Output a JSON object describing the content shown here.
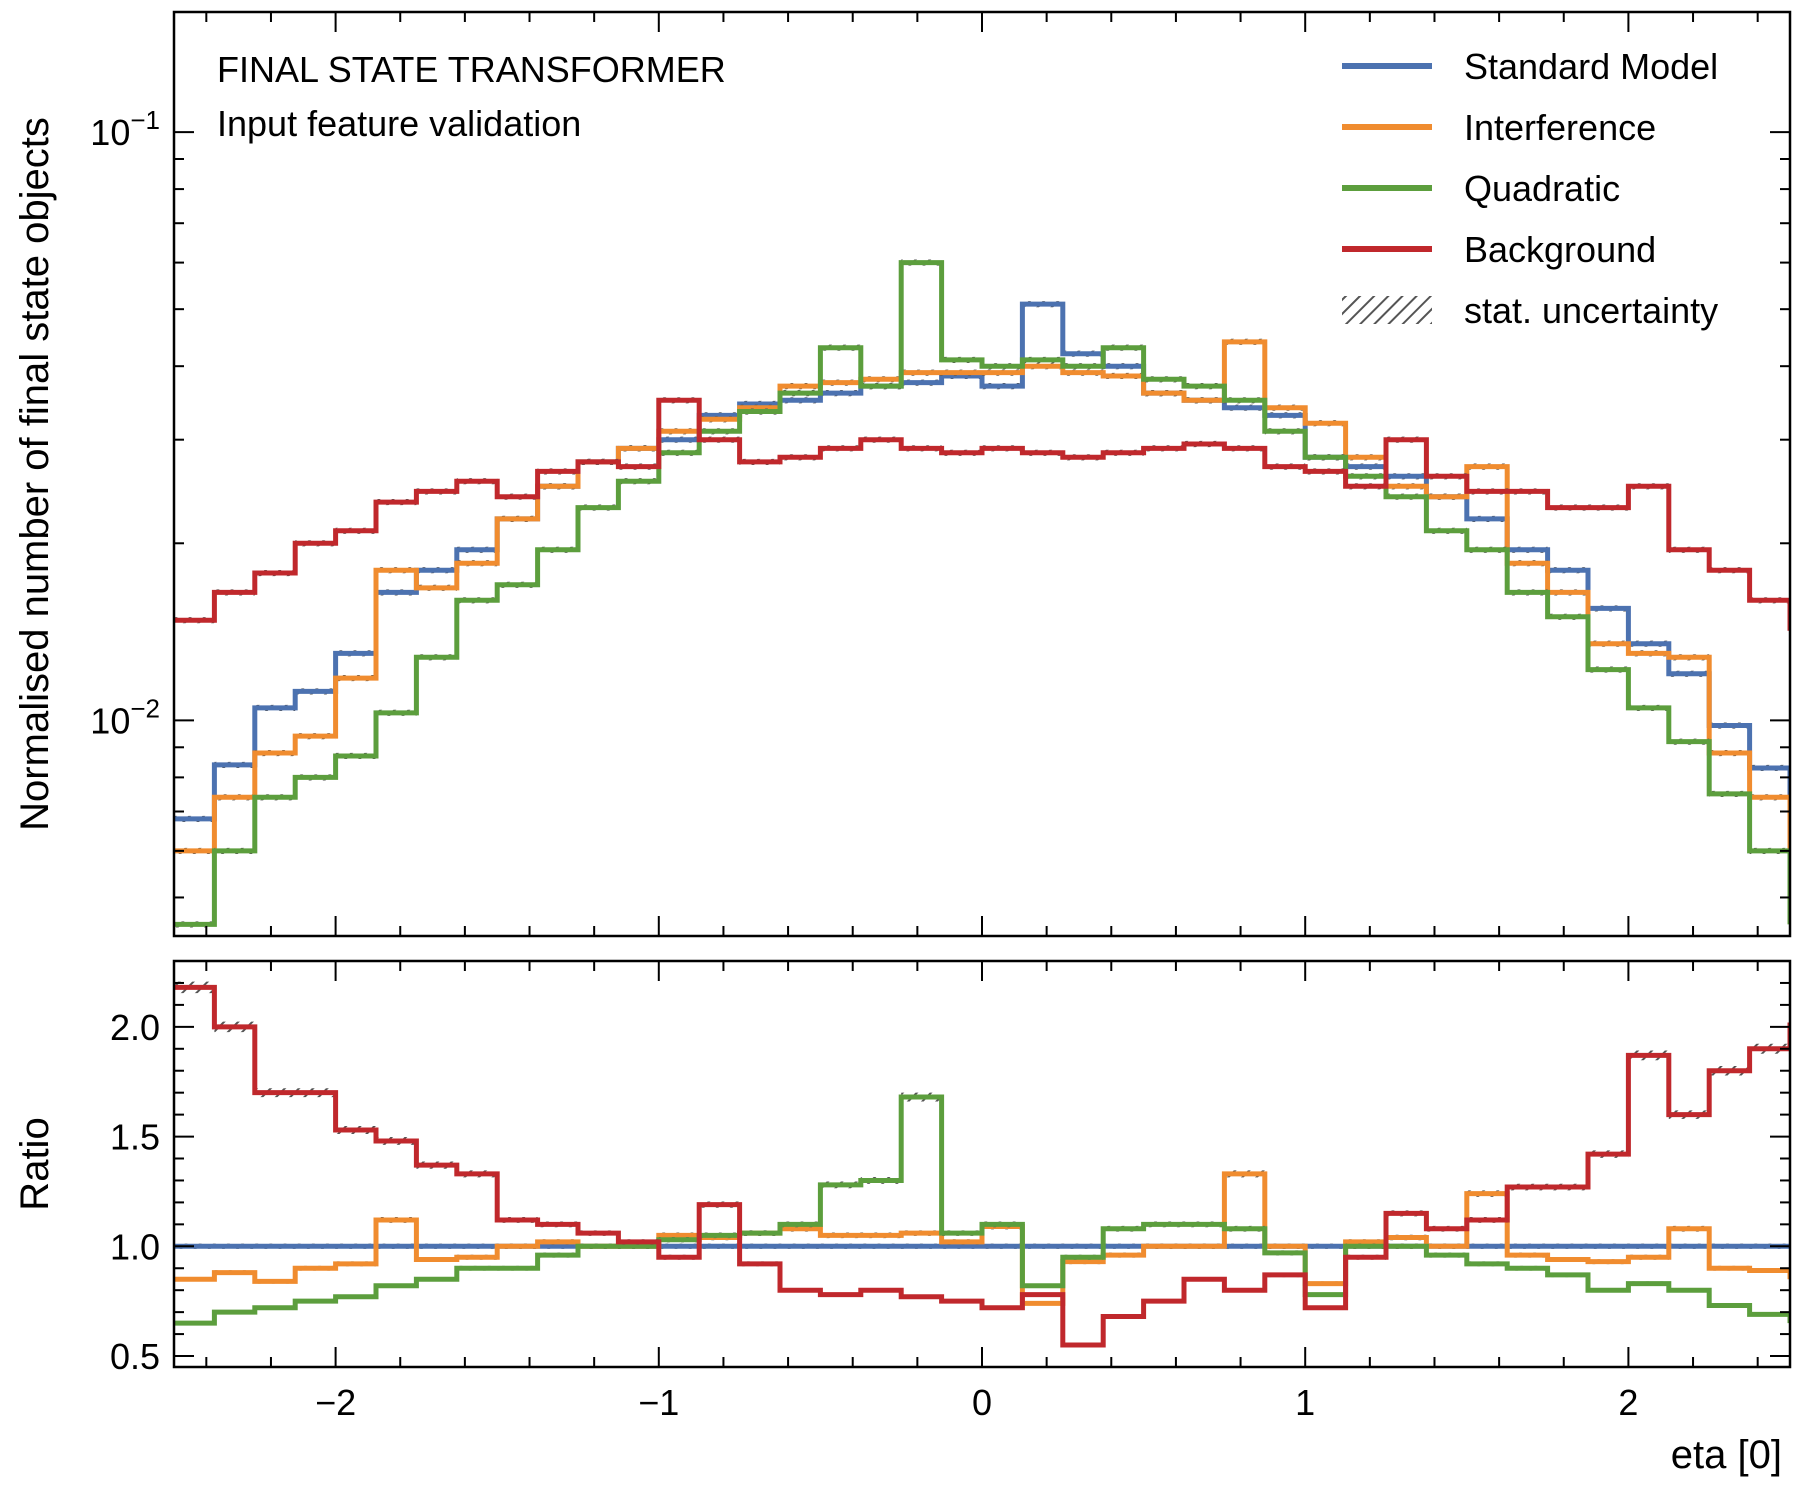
{
  "chart_data": {
    "type": "step-histogram-with-ratio",
    "annotations": [
      "FINAL STATE TRANSFORMER",
      "Input feature validation"
    ],
    "xlabel": "eta [0]",
    "xlim": [
      -2.5,
      2.5
    ],
    "xticks": [
      -2,
      -1,
      0,
      1,
      2
    ],
    "xtick_labels": [
      "−2",
      "−1",
      "0",
      "1",
      "2"
    ],
    "bin_edges": [
      -2.5,
      -2.375,
      -2.25,
      -2.125,
      -2.0,
      -1.875,
      -1.75,
      -1.625,
      -1.5,
      -1.375,
      -1.25,
      -1.125,
      -1.0,
      -0.875,
      -0.75,
      -0.625,
      -0.5,
      -0.375,
      -0.25,
      -0.125,
      0.0,
      0.125,
      0.25,
      0.375,
      0.5,
      0.625,
      0.75,
      0.875,
      1.0,
      1.125,
      1.25,
      1.375,
      1.5,
      1.625,
      1.75,
      1.875,
      2.0,
      2.125,
      2.25,
      2.375,
      2.5
    ],
    "main": {
      "ylabel": "Normalised number of final state objects",
      "yscale": "log",
      "ylim": [
        0.0043,
        0.16
      ],
      "yticks": [
        0.01,
        0.1
      ],
      "ytick_labels": [
        {
          "base": "10",
          "exp": "−2"
        },
        {
          "base": "10",
          "exp": "−1"
        }
      ],
      "series": [
        {
          "name": "Standard Model",
          "color": "#4c72b0",
          "values": [
            0.0068,
            0.0084,
            0.0105,
            0.0112,
            0.013,
            0.0165,
            0.018,
            0.0195,
            0.022,
            0.025,
            0.0275,
            0.029,
            0.03,
            0.033,
            0.0345,
            0.035,
            0.036,
            0.037,
            0.0375,
            0.0385,
            0.037,
            0.051,
            0.042,
            0.04,
            0.036,
            0.035,
            0.034,
            0.033,
            0.028,
            0.027,
            0.026,
            0.024,
            0.022,
            0.0195,
            0.018,
            0.0155,
            0.0135,
            0.012,
            0.0098,
            0.0083,
            0.0068
          ]
        },
        {
          "name": "Interference",
          "color": "#f08c2f",
          "values": [
            0.006,
            0.0074,
            0.0088,
            0.0094,
            0.0118,
            0.018,
            0.0168,
            0.0185,
            0.022,
            0.025,
            0.0275,
            0.029,
            0.031,
            0.0325,
            0.034,
            0.037,
            0.0375,
            0.038,
            0.039,
            0.039,
            0.039,
            0.04,
            0.039,
            0.0385,
            0.036,
            0.035,
            0.044,
            0.034,
            0.032,
            0.028,
            0.025,
            0.024,
            0.027,
            0.0185,
            0.0165,
            0.0135,
            0.013,
            0.0128,
            0.0088,
            0.0074,
            0.006
          ]
        },
        {
          "name": "Quadratic",
          "color": "#5c9e3d",
          "values": [
            0.0045,
            0.006,
            0.0074,
            0.008,
            0.0087,
            0.0103,
            0.0128,
            0.016,
            0.017,
            0.0195,
            0.023,
            0.0255,
            0.0285,
            0.031,
            0.0335,
            0.036,
            0.043,
            0.037,
            0.06,
            0.041,
            0.04,
            0.041,
            0.04,
            0.043,
            0.038,
            0.037,
            0.035,
            0.031,
            0.028,
            0.026,
            0.024,
            0.021,
            0.0195,
            0.0165,
            0.015,
            0.0122,
            0.0105,
            0.0092,
            0.0075,
            0.006,
            0.0045
          ]
        },
        {
          "name": "Background",
          "color": "#c0282c",
          "values": [
            0.0148,
            0.0165,
            0.0178,
            0.02,
            0.021,
            0.0235,
            0.0245,
            0.0255,
            0.024,
            0.0265,
            0.0275,
            0.027,
            0.035,
            0.03,
            0.0275,
            0.028,
            0.029,
            0.03,
            0.029,
            0.0285,
            0.029,
            0.0285,
            0.028,
            0.0285,
            0.029,
            0.0295,
            0.029,
            0.027,
            0.0265,
            0.025,
            0.03,
            0.026,
            0.0245,
            0.0245,
            0.023,
            0.023,
            0.025,
            0.0195,
            0.018,
            0.016,
            0.0142
          ]
        }
      ]
    },
    "ratio": {
      "ylabel": "Ratio",
      "ylim": [
        0.45,
        2.3
      ],
      "yticks": [
        0.5,
        1.0,
        1.5,
        2.0
      ],
      "ytick_labels": [
        "0.5",
        "1.0",
        "1.5",
        "2.0"
      ],
      "series": [
        {
          "name": "Standard Model",
          "color": "#4c72b0",
          "values": [
            1.0,
            1.0,
            1.0,
            1.0,
            1.0,
            1.0,
            1.0,
            1.0,
            1.0,
            1.0,
            1.0,
            1.0,
            1.0,
            1.0,
            1.0,
            1.0,
            1.0,
            1.0,
            1.0,
            1.0,
            1.0,
            1.0,
            1.0,
            1.0,
            1.0,
            1.0,
            1.0,
            1.0,
            1.0,
            1.0,
            1.0,
            1.0,
            1.0,
            1.0,
            1.0,
            1.0,
            1.0,
            1.0,
            1.0,
            1.0,
            1.0
          ]
        },
        {
          "name": "Interference",
          "color": "#f08c2f",
          "values": [
            0.85,
            0.88,
            0.84,
            0.9,
            0.92,
            1.12,
            0.94,
            0.95,
            1.0,
            1.02,
            1.0,
            1.0,
            1.05,
            1.04,
            1.06,
            1.08,
            1.05,
            1.05,
            1.06,
            1.02,
            1.09,
            0.74,
            0.93,
            0.96,
            1.0,
            1.0,
            1.33,
            1.0,
            0.83,
            1.02,
            1.04,
            1.0,
            1.24,
            0.96,
            0.94,
            0.93,
            0.95,
            1.08,
            0.9,
            0.89,
            0.85
          ]
        },
        {
          "name": "Quadratic",
          "color": "#5c9e3d",
          "values": [
            0.65,
            0.7,
            0.72,
            0.75,
            0.77,
            0.82,
            0.85,
            0.9,
            0.9,
            0.96,
            1.0,
            1.0,
            1.03,
            1.05,
            1.06,
            1.1,
            1.28,
            1.3,
            1.68,
            1.06,
            1.1,
            0.82,
            0.95,
            1.08,
            1.1,
            1.1,
            1.08,
            0.97,
            0.78,
            1.0,
            1.0,
            0.96,
            0.92,
            0.9,
            0.87,
            0.8,
            0.83,
            0.8,
            0.73,
            0.69,
            0.65
          ]
        },
        {
          "name": "Background",
          "color": "#c0282c",
          "values": [
            2.18,
            2.0,
            1.7,
            1.7,
            1.53,
            1.48,
            1.37,
            1.33,
            1.12,
            1.1,
            1.06,
            1.02,
            0.95,
            1.19,
            0.92,
            0.8,
            0.78,
            0.8,
            0.77,
            0.75,
            0.72,
            0.78,
            0.55,
            0.68,
            0.75,
            0.85,
            0.8,
            0.87,
            0.72,
            0.95,
            1.15,
            1.08,
            1.12,
            1.27,
            1.27,
            1.42,
            1.87,
            1.6,
            1.8,
            1.9,
            2.02
          ]
        }
      ]
    },
    "legend": {
      "placement": "top-right",
      "entries": [
        {
          "label": "Standard Model",
          "style": "line",
          "color": "#4c72b0"
        },
        {
          "label": "Interference",
          "style": "line",
          "color": "#f08c2f"
        },
        {
          "label": "Quadratic",
          "style": "line",
          "color": "#5c9e3d"
        },
        {
          "label": "Background",
          "style": "line",
          "color": "#c0282c"
        },
        {
          "label": "stat. uncertainty",
          "style": "hatch",
          "color": "#555555"
        }
      ]
    },
    "grid": false
  }
}
